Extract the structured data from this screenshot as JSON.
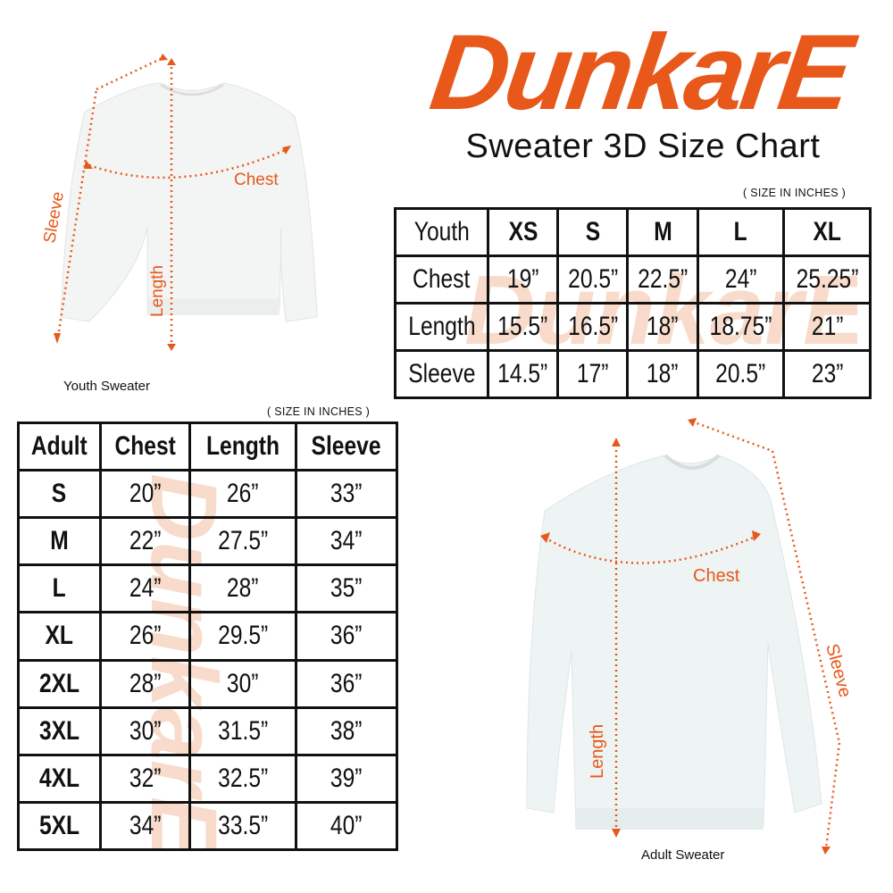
{
  "brand": {
    "logo_text": "DunkarE",
    "color": "#e8581a",
    "watermark_color": "#f6cdb5"
  },
  "title": "Sweater 3D Size Chart",
  "youth": {
    "units_note": "( SIZE IN INCHES )",
    "caption": "Youth Sweater",
    "measure_labels": {
      "chest": "Chest",
      "length": "Length",
      "sleeve": "Sleeve"
    },
    "table": {
      "header": [
        "Youth",
        "XS",
        "S",
        "M",
        "L",
        "XL"
      ],
      "rows": [
        [
          "Chest",
          "19”",
          "20.5”",
          "22.5”",
          "24”",
          "25.25”"
        ],
        [
          "Length",
          "15.5”",
          "16.5”",
          "18”",
          "18.75”",
          "21”"
        ],
        [
          "Sleeve",
          "14.5”",
          "17”",
          "18”",
          "20.5”",
          "23”"
        ]
      ]
    }
  },
  "adult": {
    "units_note": "( SIZE IN INCHES )",
    "caption": "Adult Sweater",
    "measure_labels": {
      "chest": "Chest",
      "length": "Length",
      "sleeve": "Sleeve"
    },
    "table": {
      "header": [
        "Adult",
        "Chest",
        "Length",
        "Sleeve"
      ],
      "rows": [
        [
          "S",
          "20”",
          "26”",
          "33”"
        ],
        [
          "M",
          "22”",
          "27.5”",
          "34”"
        ],
        [
          "L",
          "24”",
          "28”",
          "35”"
        ],
        [
          "XL",
          "26”",
          "29.5”",
          "36”"
        ],
        [
          "2XL",
          "28”",
          "30”",
          "36”"
        ],
        [
          "3XL",
          "30”",
          "31.5”",
          "38”"
        ],
        [
          "4XL",
          "32”",
          "32.5”",
          "39”"
        ],
        [
          "5XL",
          "34”",
          "33.5”",
          "40”"
        ]
      ]
    }
  }
}
